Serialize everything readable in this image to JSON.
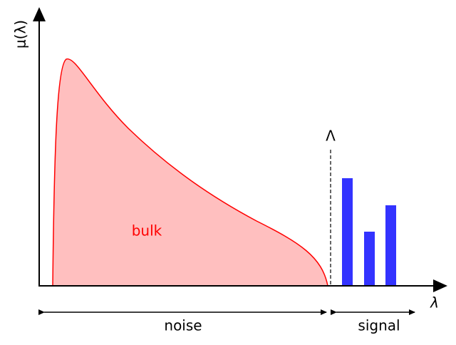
{
  "axes": {
    "y_label": "μ(λ)",
    "x_label": "λ"
  },
  "threshold_label": "Λ",
  "regions": {
    "bulk": "bulk",
    "noise": "noise",
    "signal": "signal"
  }
}
